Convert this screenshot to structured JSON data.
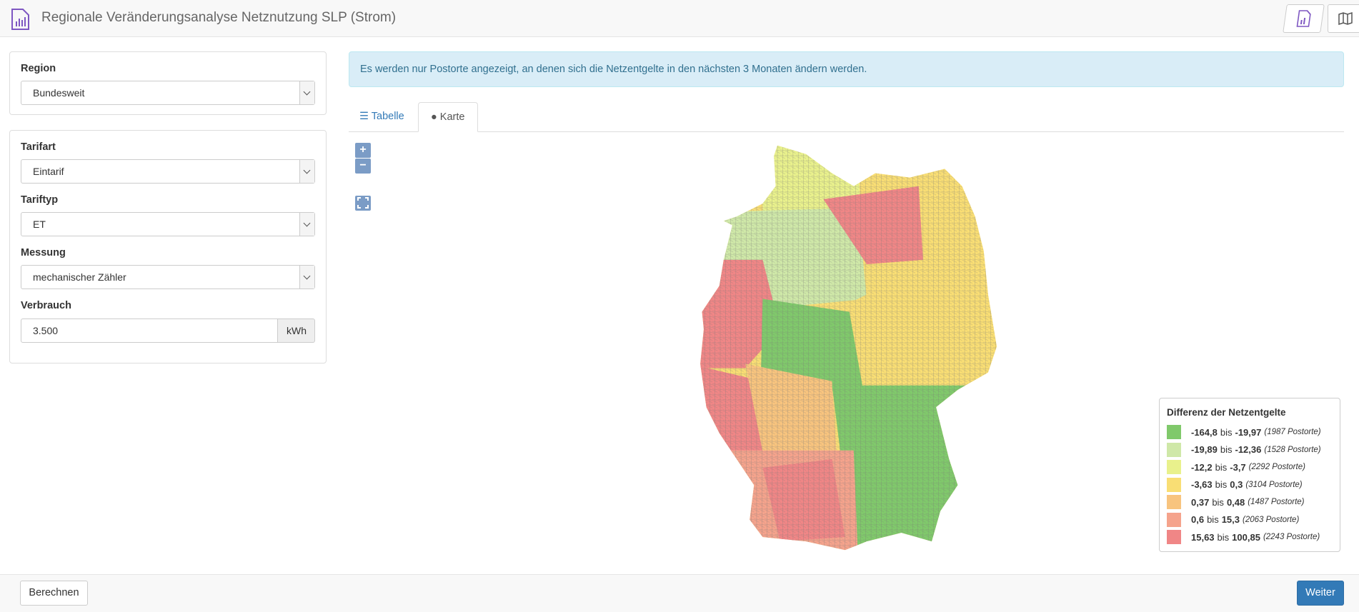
{
  "header": {
    "title": "Regionale Veränderungsanalyse Netznutzung SLP (Strom)"
  },
  "region": {
    "label": "Region",
    "value": "Bundesweit"
  },
  "filters": [
    {
      "label": "Tarifart",
      "value": "Eintarif"
    },
    {
      "label": "Tariftyp",
      "value": "ET"
    },
    {
      "label": "Messung",
      "value": "mechanischer Zähler"
    }
  ],
  "verbrauch": {
    "label": "Verbrauch",
    "value": "3.500",
    "unit": "kWh"
  },
  "info": "Es werden nur Postorte angezeigt, an denen sich die Netzentgelte in den nächsten 3 Monaten ändern werden.",
  "tabs": [
    "Tabelle",
    "Karte"
  ],
  "map": {
    "zoom_in": "+",
    "zoom_out": "−",
    "legend": {
      "title": "Differenz der Netzentgelte",
      "items": [
        {
          "from": "-164,8",
          "sep": "bis",
          "to": "-19,97",
          "count": "(1987 Postorte)",
          "color": "#80c96b"
        },
        {
          "from": "-19,89",
          "sep": "bis",
          "to": "-12,36",
          "count": "(1528 Postorte)",
          "color": "#cfe8a8"
        },
        {
          "from": "-12,2",
          "sep": "bis",
          "to": "-3,7",
          "count": "(2292 Postorte)",
          "color": "#e9f18c"
        },
        {
          "from": "-3,63",
          "sep": "bis",
          "to": "0,3",
          "count": "(3104 Postorte)",
          "color": "#f9de74"
        },
        {
          "from": "0,37",
          "sep": "bis",
          "to": "0,48",
          "count": "(1487 Postorte)",
          "color": "#f8c47e"
        },
        {
          "from": "0,6",
          "sep": "bis",
          "to": "15,3",
          "count": "(2063 Postorte)",
          "color": "#f5a38c"
        },
        {
          "from": "15,63",
          "sep": "bis",
          "to": "100,85",
          "count": "(2243 Postorte)",
          "color": "#f08686"
        }
      ]
    }
  },
  "footer": {
    "left": "Berechnen",
    "right": "Weiter"
  }
}
